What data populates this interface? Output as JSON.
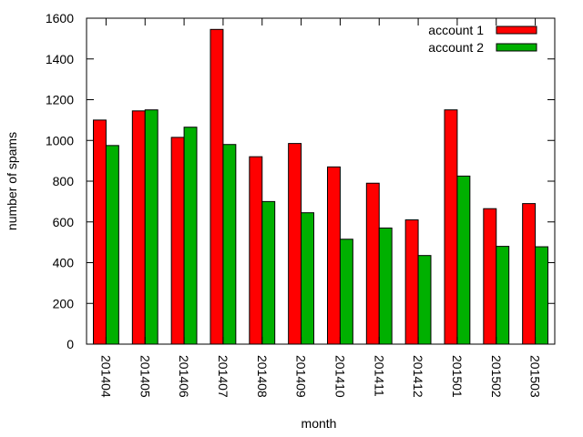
{
  "chart_data": {
    "type": "bar",
    "title": "",
    "xlabel": "month",
    "ylabel": "number of spams",
    "ylim": [
      0,
      1600
    ],
    "yticks": [
      0,
      200,
      400,
      600,
      800,
      1000,
      1200,
      1400,
      1600
    ],
    "grid": false,
    "legend_position": "top-right",
    "categories": [
      "201404",
      "201405",
      "201406",
      "201407",
      "201408",
      "201409",
      "201410",
      "201411",
      "201412",
      "201501",
      "201502",
      "201503"
    ],
    "series": [
      {
        "name": "account 1",
        "color": "#ff0000",
        "values": [
          1100,
          1145,
          1015,
          1545,
          920,
          985,
          870,
          790,
          610,
          1150,
          665,
          690
        ]
      },
      {
        "name": "account 2",
        "color": "#00b000",
        "values": [
          975,
          1150,
          1065,
          980,
          700,
          645,
          515,
          570,
          435,
          825,
          480,
          478
        ]
      }
    ]
  }
}
